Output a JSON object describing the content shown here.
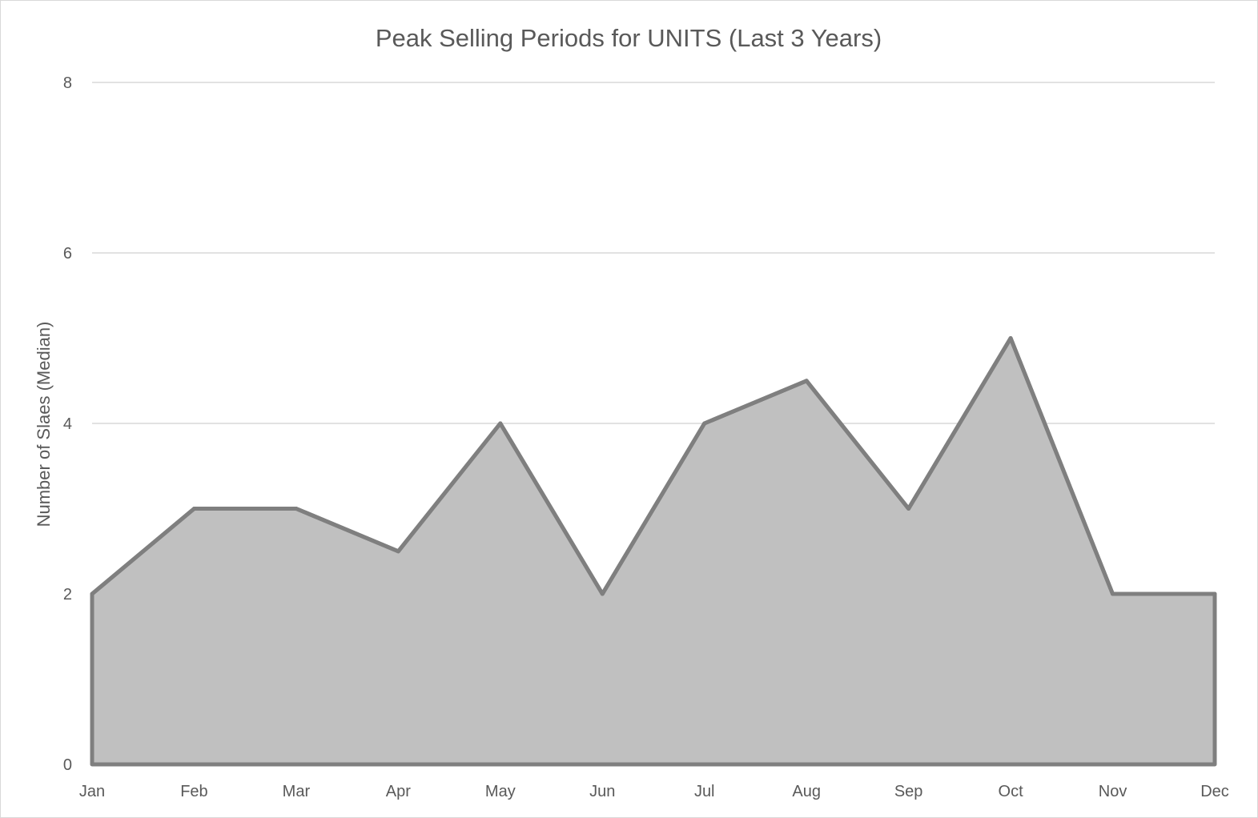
{
  "chart_data": {
    "type": "area",
    "title": "Peak Selling Periods for UNITS (Last 3 Years)",
    "xlabel": "",
    "ylabel": "Number of Slaes (Median)",
    "categories": [
      "Jan",
      "Feb",
      "Mar",
      "Apr",
      "May",
      "Jun",
      "Jul",
      "Aug",
      "Sep",
      "Oct",
      "Nov",
      "Dec"
    ],
    "series": [
      {
        "values": [
          2,
          3,
          3,
          2.5,
          4,
          2,
          4,
          4.5,
          3,
          5,
          2,
          2
        ]
      }
    ],
    "ylim": [
      0,
      8
    ],
    "yticks": [
      "0",
      "2",
      "4",
      "6",
      "8"
    ],
    "grid": true,
    "legend": "none",
    "colors": {
      "fill": "#c0c0c0",
      "line": "#7f7f7f",
      "grid": "#d9d9d9",
      "text": "#595959"
    }
  }
}
